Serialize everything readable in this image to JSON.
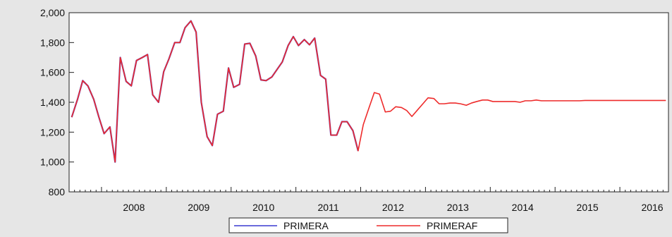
{
  "chart_data": {
    "type": "line",
    "x_range": [
      2007.5,
      2016.75
    ],
    "ylim": [
      800,
      2000
    ],
    "y_ticks": [
      800,
      1000,
      1200,
      1400,
      1600,
      1800,
      2000
    ],
    "y_tick_labels": [
      "800",
      "1,000",
      "1,200",
      "1,400",
      "1,600",
      "1,800",
      "2,000"
    ],
    "x_ticks": [
      2008,
      2009,
      2010,
      2011,
      2012,
      2013,
      2014,
      2015,
      2016
    ],
    "x_tick_labels": [
      "2008",
      "2009",
      "2010",
      "2011",
      "2012",
      "2013",
      "2014",
      "2015",
      "2016"
    ],
    "grid": false,
    "legend_position": "bottom-center",
    "series": [
      {
        "name": "PRIMERA",
        "color": "#3a3ad0",
        "points": [
          [
            2007.54,
            1300
          ],
          [
            2007.63,
            1420
          ],
          [
            2007.71,
            1545
          ],
          [
            2007.79,
            1510
          ],
          [
            2007.88,
            1420
          ],
          [
            2007.96,
            1300
          ],
          [
            2008.04,
            1190
          ],
          [
            2008.13,
            1235
          ],
          [
            2008.21,
            1000
          ],
          [
            2008.29,
            1700
          ],
          [
            2008.38,
            1540
          ],
          [
            2008.46,
            1510
          ],
          [
            2008.54,
            1680
          ],
          [
            2008.63,
            1700
          ],
          [
            2008.71,
            1720
          ],
          [
            2008.79,
            1450
          ],
          [
            2008.88,
            1400
          ],
          [
            2008.96,
            1605
          ],
          [
            2009.04,
            1690
          ],
          [
            2009.13,
            1800
          ],
          [
            2009.21,
            1800
          ],
          [
            2009.29,
            1900
          ],
          [
            2009.38,
            1945
          ],
          [
            2009.46,
            1870
          ],
          [
            2009.54,
            1400
          ],
          [
            2009.63,
            1170
          ],
          [
            2009.71,
            1110
          ],
          [
            2009.79,
            1320
          ],
          [
            2009.88,
            1340
          ],
          [
            2009.96,
            1630
          ],
          [
            2010.04,
            1500
          ],
          [
            2010.13,
            1520
          ],
          [
            2010.21,
            1790
          ],
          [
            2010.29,
            1795
          ],
          [
            2010.38,
            1710
          ],
          [
            2010.46,
            1550
          ],
          [
            2010.54,
            1545
          ],
          [
            2010.63,
            1570
          ],
          [
            2010.71,
            1620
          ],
          [
            2010.79,
            1670
          ],
          [
            2010.88,
            1780
          ],
          [
            2010.96,
            1840
          ],
          [
            2011.04,
            1780
          ],
          [
            2011.13,
            1820
          ],
          [
            2011.21,
            1785
          ],
          [
            2011.29,
            1830
          ],
          [
            2011.38,
            1580
          ],
          [
            2011.46,
            1555
          ],
          [
            2011.54,
            1180
          ],
          [
            2011.63,
            1180
          ],
          [
            2011.71,
            1270
          ],
          [
            2011.79,
            1270
          ],
          [
            2011.88,
            1210
          ],
          [
            2011.96,
            1075
          ]
        ]
      },
      {
        "name": "PRIMERAF",
        "color": "#ee2b2b",
        "points": [
          [
            2007.54,
            1300
          ],
          [
            2007.63,
            1420
          ],
          [
            2007.71,
            1545
          ],
          [
            2007.79,
            1510
          ],
          [
            2007.88,
            1420
          ],
          [
            2007.96,
            1300
          ],
          [
            2008.04,
            1190
          ],
          [
            2008.13,
            1235
          ],
          [
            2008.21,
            1000
          ],
          [
            2008.29,
            1700
          ],
          [
            2008.38,
            1540
          ],
          [
            2008.46,
            1510
          ],
          [
            2008.54,
            1680
          ],
          [
            2008.63,
            1700
          ],
          [
            2008.71,
            1720
          ],
          [
            2008.79,
            1450
          ],
          [
            2008.88,
            1400
          ],
          [
            2008.96,
            1605
          ],
          [
            2009.04,
            1690
          ],
          [
            2009.13,
            1800
          ],
          [
            2009.21,
            1800
          ],
          [
            2009.29,
            1900
          ],
          [
            2009.38,
            1945
          ],
          [
            2009.46,
            1870
          ],
          [
            2009.54,
            1400
          ],
          [
            2009.63,
            1170
          ],
          [
            2009.71,
            1110
          ],
          [
            2009.79,
            1320
          ],
          [
            2009.88,
            1340
          ],
          [
            2009.96,
            1630
          ],
          [
            2010.04,
            1500
          ],
          [
            2010.13,
            1520
          ],
          [
            2010.21,
            1790
          ],
          [
            2010.29,
            1795
          ],
          [
            2010.38,
            1710
          ],
          [
            2010.46,
            1550
          ],
          [
            2010.54,
            1545
          ],
          [
            2010.63,
            1570
          ],
          [
            2010.71,
            1620
          ],
          [
            2010.79,
            1670
          ],
          [
            2010.88,
            1780
          ],
          [
            2010.96,
            1840
          ],
          [
            2011.04,
            1780
          ],
          [
            2011.13,
            1820
          ],
          [
            2011.21,
            1785
          ],
          [
            2011.29,
            1830
          ],
          [
            2011.38,
            1580
          ],
          [
            2011.46,
            1555
          ],
          [
            2011.54,
            1180
          ],
          [
            2011.63,
            1180
          ],
          [
            2011.71,
            1270
          ],
          [
            2011.79,
            1270
          ],
          [
            2011.88,
            1210
          ],
          [
            2011.96,
            1075
          ],
          [
            2012.04,
            1250
          ],
          [
            2012.13,
            1365
          ],
          [
            2012.21,
            1465
          ],
          [
            2012.29,
            1455
          ],
          [
            2012.38,
            1335
          ],
          [
            2012.46,
            1340
          ],
          [
            2012.54,
            1370
          ],
          [
            2012.63,
            1365
          ],
          [
            2012.71,
            1345
          ],
          [
            2012.79,
            1305
          ],
          [
            2012.88,
            1350
          ],
          [
            2012.96,
            1390
          ],
          [
            2013.04,
            1430
          ],
          [
            2013.13,
            1425
          ],
          [
            2013.21,
            1390
          ],
          [
            2013.29,
            1390
          ],
          [
            2013.38,
            1395
          ],
          [
            2013.46,
            1395
          ],
          [
            2013.54,
            1390
          ],
          [
            2013.63,
            1380
          ],
          [
            2013.71,
            1395
          ],
          [
            2013.79,
            1405
          ],
          [
            2013.88,
            1415
          ],
          [
            2013.96,
            1415
          ],
          [
            2014.04,
            1405
          ],
          [
            2014.13,
            1405
          ],
          [
            2014.21,
            1405
          ],
          [
            2014.29,
            1405
          ],
          [
            2014.38,
            1405
          ],
          [
            2014.46,
            1400
          ],
          [
            2014.54,
            1410
          ],
          [
            2014.63,
            1410
          ],
          [
            2014.71,
            1415
          ],
          [
            2014.79,
            1410
          ],
          [
            2014.88,
            1410
          ],
          [
            2014.96,
            1410
          ],
          [
            2015.04,
            1410
          ],
          [
            2015.13,
            1410
          ],
          [
            2015.21,
            1410
          ],
          [
            2015.29,
            1410
          ],
          [
            2015.38,
            1410
          ],
          [
            2015.46,
            1412
          ],
          [
            2015.54,
            1412
          ],
          [
            2015.63,
            1412
          ],
          [
            2015.71,
            1412
          ],
          [
            2015.79,
            1412
          ],
          [
            2015.88,
            1412
          ],
          [
            2015.96,
            1412
          ],
          [
            2016.04,
            1412
          ],
          [
            2016.13,
            1412
          ],
          [
            2016.21,
            1412
          ],
          [
            2016.29,
            1412
          ],
          [
            2016.38,
            1412
          ],
          [
            2016.46,
            1412
          ],
          [
            2016.54,
            1412
          ],
          [
            2016.63,
            1412
          ],
          [
            2016.71,
            1412
          ]
        ]
      }
    ]
  }
}
